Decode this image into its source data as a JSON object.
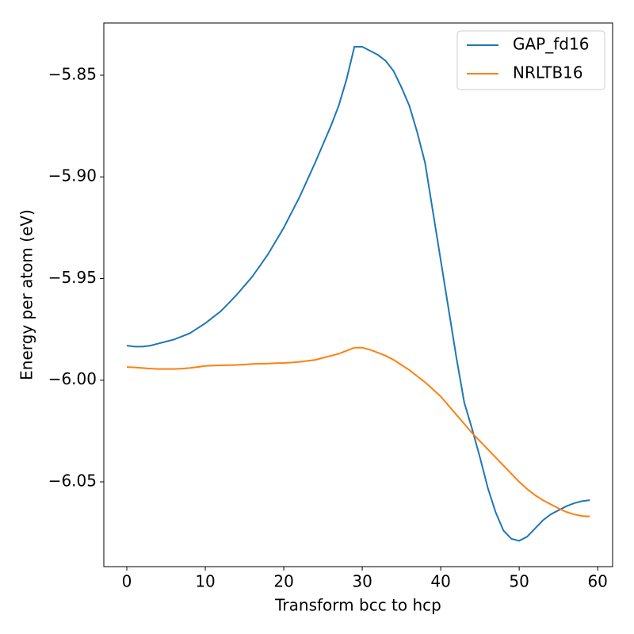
{
  "chart_data": {
    "type": "line",
    "x_label": "Transform bcc to hcp",
    "y_label": "Energy per atom (eV)",
    "x": [
      0,
      1,
      2,
      3,
      4,
      5,
      6,
      7,
      8,
      9,
      10,
      11,
      12,
      13,
      14,
      15,
      16,
      17,
      18,
      19,
      20,
      21,
      22,
      23,
      24,
      25,
      26,
      27,
      28,
      29,
      30,
      31,
      32,
      33,
      34,
      35,
      36,
      37,
      38,
      39,
      40,
      41,
      42,
      43,
      44,
      45,
      46,
      47,
      48,
      49,
      50,
      51,
      52,
      53,
      54,
      55,
      56,
      57,
      58,
      59
    ],
    "series": [
      {
        "name": "GAP_fd16",
        "color": "#1f77b4",
        "values": [
          -5.983,
          -5.9835,
          -5.9835,
          -5.983,
          -5.982,
          -5.981,
          -5.98,
          -5.9785,
          -5.977,
          -5.9745,
          -5.972,
          -5.969,
          -5.966,
          -5.962,
          -5.958,
          -5.9535,
          -5.949,
          -5.9435,
          -5.938,
          -5.9315,
          -5.925,
          -5.9175,
          -5.91,
          -5.9015,
          -5.893,
          -5.884,
          -5.875,
          -5.865,
          -5.852,
          -5.836,
          -5.836,
          -5.838,
          -5.84,
          -5.843,
          -5.848,
          -5.856,
          -5.865,
          -5.878,
          -5.893,
          -5.917,
          -5.941,
          -5.965,
          -5.989,
          -6.011,
          -6.024,
          -6.038,
          -6.053,
          -6.065,
          -6.074,
          -6.078,
          -6.079,
          -6.077,
          -6.073,
          -6.069,
          -6.066,
          -6.064,
          -6.062,
          -6.0605,
          -6.0595,
          -6.059
        ]
      },
      {
        "name": "NRLTB16",
        "color": "#ff7f0e",
        "values": [
          -5.9935,
          -5.9937,
          -5.994,
          -5.9943,
          -5.9945,
          -5.9945,
          -5.9945,
          -5.9943,
          -5.994,
          -5.9935,
          -5.993,
          -5.9928,
          -5.9927,
          -5.9926,
          -5.9925,
          -5.9923,
          -5.992,
          -5.9919,
          -5.9918,
          -5.9916,
          -5.9915,
          -5.9913,
          -5.991,
          -5.9905,
          -5.99,
          -5.989,
          -5.988,
          -5.987,
          -5.9855,
          -5.984,
          -5.984,
          -5.985,
          -5.9865,
          -5.988,
          -5.99,
          -5.9925,
          -5.995,
          -5.998,
          -6.001,
          -6.0045,
          -6.008,
          -6.0125,
          -6.017,
          -6.0215,
          -6.026,
          -6.03,
          -6.034,
          -6.038,
          -6.042,
          -6.046,
          -6.05,
          -6.0535,
          -6.0565,
          -6.059,
          -6.061,
          -6.063,
          -6.0648,
          -6.066,
          -6.0668,
          -6.067
        ]
      }
    ],
    "xlim": [
      -2.93,
      61.9
    ],
    "ylim": [
      -6.0917,
      -5.8243
    ],
    "xticks": [
      0,
      10,
      20,
      30,
      40,
      50,
      60
    ],
    "yticks": [
      {
        "value": -6.05,
        "label": "−6.05"
      },
      {
        "value": -6.0,
        "label": "−6.00"
      },
      {
        "value": -5.95,
        "label": "−5.95"
      },
      {
        "value": -5.9,
        "label": "−5.90"
      },
      {
        "value": -5.85,
        "label": "−5.85"
      }
    ],
    "legend": "upper right"
  }
}
